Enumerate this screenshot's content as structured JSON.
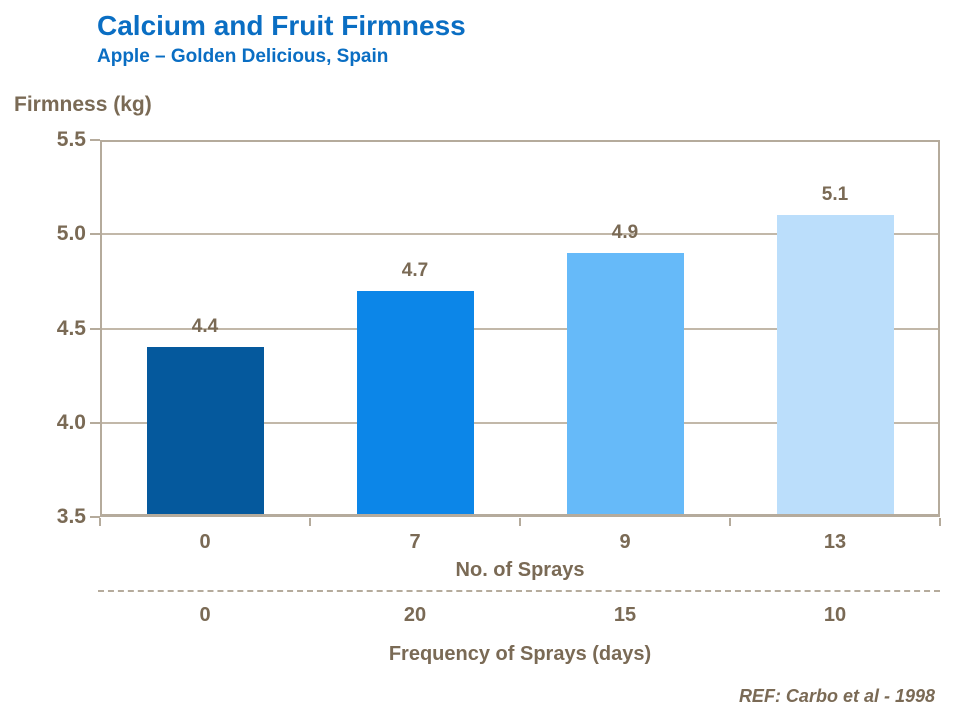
{
  "header": {
    "title": "Calcium and Fruit Firmness",
    "subtitle": "Apple – Golden Delicious, Spain"
  },
  "footer": {
    "reference": "REF: Carbo et al - 1998"
  },
  "colors": {
    "title_blue": "#0A6EC3",
    "text_taupe": "#7A6A55",
    "axis_line": "#B5AB9C",
    "gridline": "#C2B8A9",
    "bar_colors": [
      "#05599D",
      "#0C86E8",
      "#66BAF9",
      "#BBDEFB"
    ]
  },
  "chart_data": {
    "type": "bar",
    "title": "Calcium and Fruit Firmness",
    "subtitle": "Apple – Golden Delicious, Spain",
    "xlabel": "No. of Sprays",
    "ylabel": "Firmness (kg)",
    "ylim": [
      3.5,
      5.5
    ],
    "yticks": [
      5.5,
      5.0,
      4.5,
      4.0,
      3.5
    ],
    "grid": true,
    "legend": "none",
    "categories": [
      "0",
      "7",
      "9",
      "13"
    ],
    "values": [
      4.4,
      4.7,
      4.9,
      5.1
    ],
    "value_labels": [
      "4.4",
      "4.7",
      "4.9",
      "5.1"
    ],
    "x_axis_rows": [
      {
        "label": "No. of Sprays",
        "values": [
          "0",
          "7",
          "9",
          "13"
        ]
      },
      {
        "label": "Frequency of Sprays (days)",
        "values": [
          "0",
          "20",
          "15",
          "10"
        ]
      }
    ],
    "reference": "REF: Carbo et al - 1998"
  }
}
